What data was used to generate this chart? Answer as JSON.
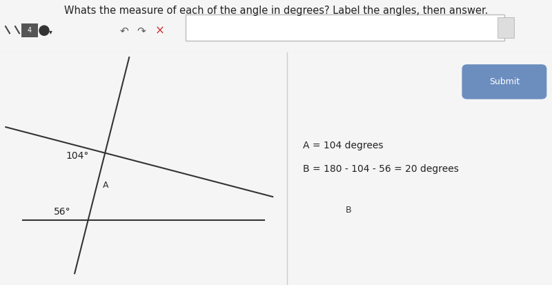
{
  "title": "Whats the measure of each of the angle in degrees? Label the angles, then answer.",
  "answer_text_line1": "A = 104 degrees",
  "answer_text_line2": "B = 180 - 104 - 56 = 20 degrees",
  "label_104": "104°",
  "label_56": "56°",
  "label_A": "A",
  "label_B": "B",
  "line_color": "#333333",
  "submit_bg": "#6c8ebf",
  "submit_text": "Submit",
  "panel_left_bg": "#e8e8e8",
  "panel_right_bg": "#f5f5f5",
  "toolbar_bg": "#ffffff",
  "arc_color": "#8899bb",
  "arc_fill_color": "#99aabb"
}
